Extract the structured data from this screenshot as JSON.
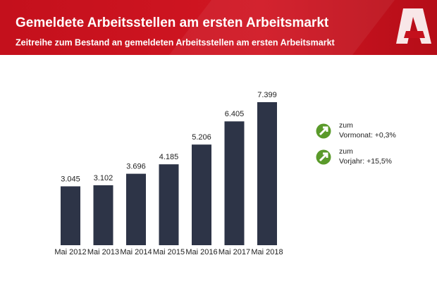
{
  "chart_data": {
    "type": "bar",
    "title": "Gemeldete Arbeitsstellen am ersten Arbeitsmarkt",
    "subtitle": "Zeitreihe zum Bestand an gemeldeten Arbeitsstellen am ersten Arbeitsmarkt",
    "categories": [
      "Mai 2012",
      "Mai 2013",
      "Mai 2014",
      "Mai 2015",
      "Mai 2016",
      "Mai 2017",
      "Mai 2018"
    ],
    "values": [
      3045,
      3102,
      3696,
      4185,
      5206,
      6405,
      7399
    ],
    "value_labels": [
      "3.045",
      "3.102",
      "3.696",
      "4.185",
      "5.206",
      "6.405",
      "7.399"
    ],
    "color": "#2d3447",
    "annotations": [
      [
        "zum",
        "Vormonat: +0,3%"
      ],
      [
        "zum",
        "Vorjahr: +15,5%"
      ]
    ]
  }
}
